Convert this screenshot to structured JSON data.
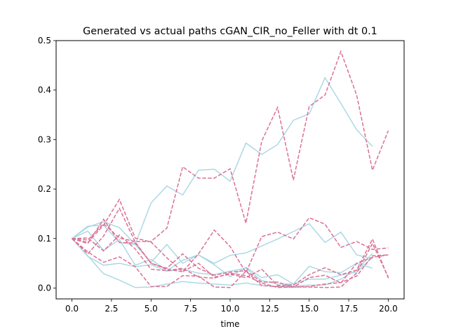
{
  "chart_data": {
    "type": "line",
    "title": "Generated vs actual paths cGAN_CIR_no_Feller with dt 0.1",
    "xlabel": "time",
    "ylabel": "",
    "xlim": [
      -1,
      21
    ],
    "ylim": [
      -0.022,
      0.5
    ],
    "xticks": [
      0.0,
      2.5,
      5.0,
      7.5,
      10.0,
      12.5,
      15.0,
      17.5,
      20.0
    ],
    "xtick_labels": [
      "0.0",
      "2.5",
      "5.0",
      "7.5",
      "10.0",
      "12.5",
      "15.0",
      "17.5",
      "20.0"
    ],
    "yticks": [
      0.0,
      0.1,
      0.2,
      0.3,
      0.4,
      0.5
    ],
    "ytick_labels": [
      "0.0",
      "0.1",
      "0.2",
      "0.3",
      "0.4",
      "0.5"
    ],
    "grid": false,
    "legend": false,
    "colors": {
      "actual": "#add8e6",
      "generated": "#db7093"
    },
    "series": [
      {
        "style": "solid",
        "color": "#add8e6",
        "x": [
          0,
          1,
          2,
          3,
          4,
          5,
          6,
          7,
          8,
          9,
          10,
          11,
          12,
          13,
          14,
          15,
          16,
          17,
          18,
          19
        ],
        "y": [
          0.1,
          0.125,
          0.127,
          0.092,
          0.088,
          0.172,
          0.206,
          0.188,
          0.238,
          0.24,
          0.216,
          0.293,
          0.27,
          0.29,
          0.339,
          0.352,
          0.425,
          0.373,
          0.32,
          0.286
        ]
      },
      {
        "style": "solid",
        "color": "#add8e6",
        "x": [
          0,
          1,
          2,
          3,
          4,
          5,
          6,
          7,
          8,
          9,
          10,
          11,
          12,
          13,
          14,
          15,
          16,
          17,
          18,
          19
        ],
        "y": [
          0.1,
          0.123,
          0.134,
          0.122,
          0.088,
          0.052,
          0.088,
          0.05,
          0.067,
          0.05,
          0.066,
          0.071,
          0.085,
          0.099,
          0.114,
          0.13,
          0.092,
          0.113,
          0.067,
          0.059
        ]
      },
      {
        "style": "solid",
        "color": "#add8e6",
        "x": [
          0,
          1,
          2,
          3,
          4,
          5,
          6,
          7,
          8,
          9,
          10,
          11,
          12,
          13,
          14,
          15,
          16,
          17,
          18,
          19
        ],
        "y": [
          0.1,
          0.115,
          0.076,
          0.098,
          0.046,
          0.058,
          0.035,
          0.056,
          0.067,
          0.047,
          0.023,
          0.042,
          0.021,
          0.027,
          0.008,
          0.044,
          0.033,
          0.031,
          0.05,
          0.04
        ]
      },
      {
        "style": "solid",
        "color": "#add8e6",
        "x": [
          0,
          1,
          2,
          3,
          4,
          5,
          6,
          7,
          8,
          9,
          10,
          11,
          12,
          13,
          14,
          15,
          16,
          17,
          18,
          19
        ],
        "y": [
          0.1,
          0.064,
          0.046,
          0.05,
          0.043,
          0.047,
          0.034,
          0.038,
          0.03,
          0.027,
          0.034,
          0.04,
          0.015,
          0.008,
          0.008,
          0.018,
          0.018,
          0.026,
          0.032,
          0.062
        ]
      },
      {
        "style": "solid",
        "color": "#add8e6",
        "x": [
          0,
          1,
          2,
          3,
          4,
          5,
          6,
          7,
          8,
          9,
          10,
          11,
          12,
          13,
          14,
          15,
          16,
          17,
          18,
          19
        ],
        "y": [
          0.1,
          0.065,
          0.029,
          0.016,
          0.001,
          0.002,
          0.008,
          0.013,
          0.01,
          0.008,
          0.006,
          0.01,
          0.005,
          0.003,
          0.004,
          0.006,
          0.006,
          0.018,
          0.036,
          0.07
        ]
      },
      {
        "style": "dashed",
        "color": "#db7093",
        "x": [
          0,
          1,
          2,
          3,
          4,
          5,
          6,
          7,
          8,
          9,
          10,
          11,
          12,
          13,
          14,
          15,
          16,
          17,
          18,
          19,
          20
        ],
        "y": [
          0.1,
          0.097,
          0.13,
          0.101,
          0.094,
          0.094,
          0.121,
          0.245,
          0.222,
          0.222,
          0.241,
          0.131,
          0.297,
          0.365,
          0.218,
          0.367,
          0.39,
          0.478,
          0.39,
          0.238,
          0.318
        ]
      },
      {
        "style": "dashed",
        "color": "#db7093",
        "x": [
          0,
          1,
          2,
          3,
          4,
          5,
          6,
          7,
          8,
          9,
          10,
          11,
          12,
          13,
          14,
          15,
          16,
          17,
          18,
          19,
          20
        ],
        "y": [
          0.1,
          0.09,
          0.139,
          0.092,
          0.091,
          0.05,
          0.038,
          0.033,
          0.069,
          0.117,
          0.084,
          0.031,
          0.104,
          0.113,
          0.099,
          0.142,
          0.129,
          0.082,
          0.094,
          0.078,
          0.081
        ]
      },
      {
        "style": "dashed",
        "color": "#db7093",
        "x": [
          0,
          1,
          2,
          3,
          4,
          5,
          6,
          7,
          8,
          9,
          10,
          11,
          12,
          13,
          14,
          15,
          16,
          17,
          18,
          19,
          20
        ],
        "y": [
          0.1,
          0.092,
          0.127,
          0.179,
          0.101,
          0.093,
          0.061,
          0.033,
          0.05,
          0.022,
          0.028,
          0.021,
          0.038,
          0.005,
          0.006,
          0.027,
          0.041,
          0.027,
          0.036,
          0.099,
          0.02
        ]
      },
      {
        "style": "dashed",
        "color": "#db7093",
        "x": [
          0,
          1,
          2,
          3,
          4,
          5,
          6,
          7,
          8,
          9,
          10,
          11,
          12,
          13,
          14,
          15,
          16,
          17,
          18,
          19,
          20
        ],
        "y": [
          0.1,
          0.069,
          0.105,
          0.161,
          0.093,
          0.05,
          0.04,
          0.069,
          0.04,
          0.026,
          0.032,
          0.035,
          0.012,
          0.012,
          0.002,
          0.021,
          0.026,
          0.01,
          0.05,
          0.062,
          0.067
        ]
      },
      {
        "style": "dashed",
        "color": "#db7093",
        "x": [
          0,
          1,
          2,
          3,
          4,
          5,
          6,
          7,
          8,
          9,
          10,
          11,
          12,
          13,
          14,
          15,
          16,
          17,
          18,
          19,
          20
        ],
        "y": [
          0.1,
          0.101,
          0.075,
          0.107,
          0.079,
          0.038,
          0.035,
          0.04,
          0.022,
          0.02,
          0.03,
          0.025,
          0.01,
          0.001,
          0.002,
          0.003,
          0.008,
          0.011,
          0.024,
          0.065,
          0.067
        ]
      },
      {
        "style": "dashed",
        "color": "#db7093",
        "x": [
          0,
          1,
          2,
          3,
          4,
          5,
          6,
          7,
          8,
          9,
          10,
          11,
          12,
          13,
          14,
          15,
          16,
          17,
          18,
          19,
          20
        ],
        "y": [
          0.1,
          0.073,
          0.052,
          0.063,
          0.043,
          0.003,
          0.003,
          0.025,
          0.024,
          0.002,
          0.001,
          0.034,
          0.005,
          0.003,
          0.002,
          0.002,
          0.001,
          0.002,
          0.03,
          0.09,
          0.022
        ]
      }
    ]
  }
}
